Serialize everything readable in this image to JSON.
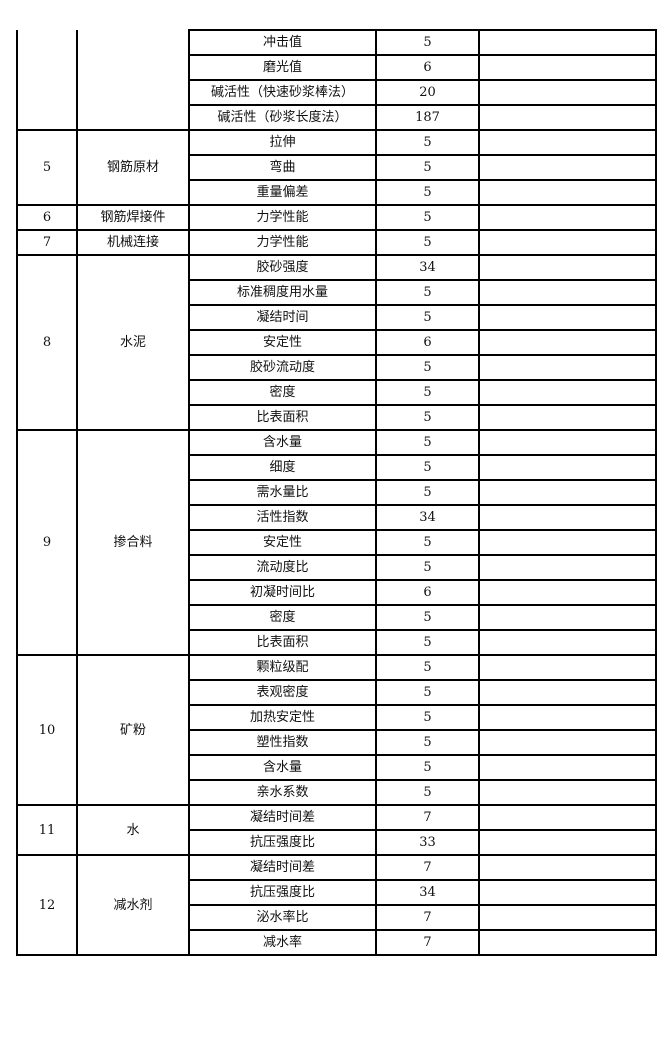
{
  "groups": [
    {
      "no": "",
      "material": "",
      "items": [
        {
          "param": "冲击值",
          "count": "5",
          "note": ""
        },
        {
          "param": "磨光值",
          "count": "6",
          "note": ""
        },
        {
          "param": "碱活性（快速砂浆棒法）",
          "count": "20",
          "note": ""
        },
        {
          "param": "碱活性（砂浆长度法）",
          "count": "187",
          "note": ""
        }
      ]
    },
    {
      "no": "5",
      "material": "钢筋原材",
      "items": [
        {
          "param": "拉伸",
          "count": "5",
          "note": ""
        },
        {
          "param": "弯曲",
          "count": "5",
          "note": ""
        },
        {
          "param": "重量偏差",
          "count": "5",
          "note": ""
        }
      ]
    },
    {
      "no": "6",
      "material": "钢筋焊接件",
      "items": [
        {
          "param": "力学性能",
          "count": "5",
          "note": ""
        }
      ]
    },
    {
      "no": "7",
      "material": "机械连接",
      "items": [
        {
          "param": "力学性能",
          "count": "5",
          "note": ""
        }
      ]
    },
    {
      "no": "8",
      "material": "水泥",
      "items": [
        {
          "param": "胶砂强度",
          "count": "34",
          "note": ""
        },
        {
          "param": "标准稠度用水量",
          "count": "5",
          "note": ""
        },
        {
          "param": "凝结时间",
          "count": "5",
          "note": ""
        },
        {
          "param": "安定性",
          "count": "6",
          "note": ""
        },
        {
          "param": "胶砂流动度",
          "count": "5",
          "note": ""
        },
        {
          "param": "密度",
          "count": "5",
          "note": ""
        },
        {
          "param": "比表面积",
          "count": "5",
          "note": ""
        }
      ]
    },
    {
      "no": "9",
      "material": "掺合料",
      "items": [
        {
          "param": "含水量",
          "count": "5",
          "note": ""
        },
        {
          "param": "细度",
          "count": "5",
          "note": ""
        },
        {
          "param": "需水量比",
          "count": "5",
          "note": ""
        },
        {
          "param": "活性指数",
          "count": "34",
          "note": ""
        },
        {
          "param": "安定性",
          "count": "5",
          "note": ""
        },
        {
          "param": "流动度比",
          "count": "5",
          "note": ""
        },
        {
          "param": "初凝时间比",
          "count": "6",
          "note": ""
        },
        {
          "param": "密度",
          "count": "5",
          "note": ""
        },
        {
          "param": "比表面积",
          "count": "5",
          "note": ""
        }
      ]
    },
    {
      "no": "10",
      "material": "矿粉",
      "items": [
        {
          "param": "颗粒级配",
          "count": "5",
          "note": ""
        },
        {
          "param": "表观密度",
          "count": "5",
          "note": ""
        },
        {
          "param": "加热安定性",
          "count": "5",
          "note": ""
        },
        {
          "param": "塑性指数",
          "count": "5",
          "note": ""
        },
        {
          "param": "含水量",
          "count": "5",
          "note": ""
        },
        {
          "param": "亲水系数",
          "count": "5",
          "note": ""
        }
      ]
    },
    {
      "no": "11",
      "material": "水",
      "items": [
        {
          "param": "凝结时间差",
          "count": "7",
          "note": ""
        },
        {
          "param": "抗压强度比",
          "count": "33",
          "note": ""
        }
      ]
    },
    {
      "no": "12",
      "material": "减水剂",
      "items": [
        {
          "param": "凝结时间差",
          "count": "7",
          "note": ""
        },
        {
          "param": "抗压强度比",
          "count": "34",
          "note": ""
        },
        {
          "param": "泌水率比",
          "count": "7",
          "note": ""
        },
        {
          "param": "减水率",
          "count": "7",
          "note": ""
        }
      ]
    }
  ]
}
